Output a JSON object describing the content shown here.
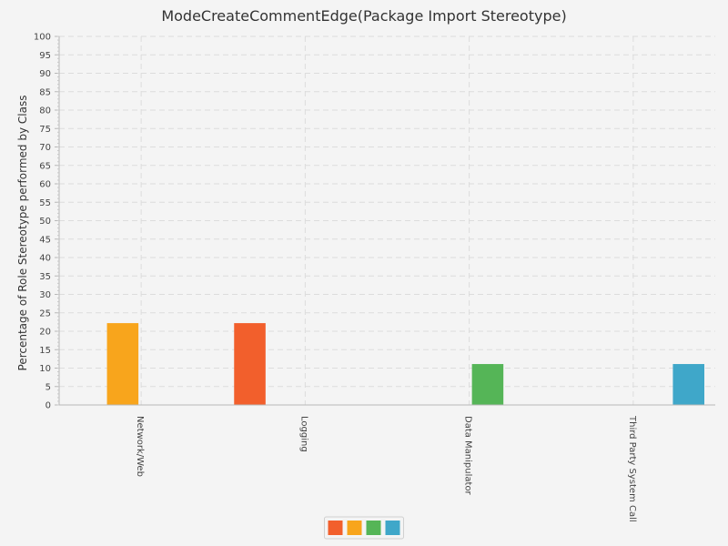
{
  "chart_data": {
    "type": "bar",
    "title": "ModeCreateCommentEdge(Package Import Stereotype)",
    "ylabel": "Percentage of Role Stereotype performed by Class",
    "xlabel": "",
    "categories": [
      "Network/Web",
      "Logging",
      "Data Manipulator",
      "Third Party System Call"
    ],
    "ylim": [
      0,
      100
    ],
    "ytick_step": 5,
    "grid": true,
    "legend_placement": "bottom-center",
    "series": [
      {
        "color": "#f25f2c",
        "values": [
          0,
          22.2,
          0,
          0
        ]
      },
      {
        "color": "#f8a51c",
        "values": [
          22.2,
          0,
          0,
          0
        ]
      },
      {
        "color": "#55b557",
        "values": [
          0,
          0,
          11.1,
          0
        ]
      },
      {
        "color": "#3fa7c9",
        "values": [
          0,
          0,
          0,
          11.1
        ]
      }
    ]
  }
}
